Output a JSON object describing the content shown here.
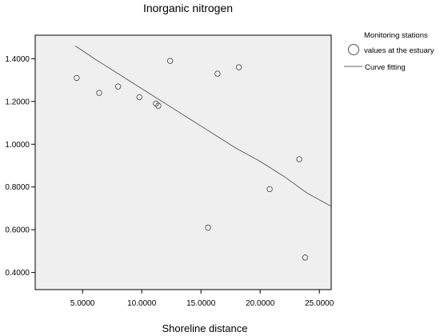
{
  "chart_data": {
    "type": "scatter",
    "title": "Inorganic nitrogen",
    "xlabel": "Shoreline distance",
    "ylabel": "",
    "xlim": [
      1.0,
      26.0
    ],
    "ylim": [
      0.32,
      1.51
    ],
    "x_ticks": [
      "5.0000",
      "10.0000",
      "15.0000",
      "20.0000",
      "25.0000"
    ],
    "x_tick_values": [
      5,
      10,
      15,
      20,
      25
    ],
    "y_ticks": [
      "0.4000",
      "0.6000",
      "0.8000",
      "1.0000",
      "1.2000",
      "1.4000"
    ],
    "y_tick_values": [
      0.4,
      0.6,
      0.8,
      1.0,
      1.2,
      1.4
    ],
    "grid": false,
    "legend_position": "top-right outside",
    "legend": {
      "line1": "Monitoring stations",
      "line2": "values at the estuary",
      "fit_label": "Curve fitting"
    },
    "colors": {
      "plot_background": "#efefef",
      "marker_stroke": "#555555",
      "curve": "#666666",
      "axis": "#000000"
    },
    "series": [
      {
        "name": "Monitoring stations values at the estuary",
        "type": "scatter",
        "points": [
          [
            4.5,
            1.31
          ],
          [
            6.4,
            1.24
          ],
          [
            8.0,
            1.27
          ],
          [
            9.8,
            1.22
          ],
          [
            11.2,
            1.19
          ],
          [
            11.4,
            1.18
          ],
          [
            12.4,
            1.39
          ],
          [
            16.4,
            1.33
          ],
          [
            18.2,
            1.36
          ],
          [
            15.6,
            0.61
          ],
          [
            20.8,
            0.79
          ],
          [
            23.3,
            0.93
          ],
          [
            23.8,
            0.47
          ]
        ]
      },
      {
        "name": "Curve fitting",
        "type": "line",
        "points": [
          [
            4.4,
            1.46
          ],
          [
            6.0,
            1.4
          ],
          [
            8.0,
            1.33
          ],
          [
            10.0,
            1.26
          ],
          [
            12.0,
            1.19
          ],
          [
            14.0,
            1.12
          ],
          [
            16.0,
            1.05
          ],
          [
            18.0,
            0.98
          ],
          [
            20.0,
            0.92
          ],
          [
            22.0,
            0.85
          ],
          [
            24.0,
            0.77
          ],
          [
            26.0,
            0.71
          ]
        ]
      }
    ]
  }
}
